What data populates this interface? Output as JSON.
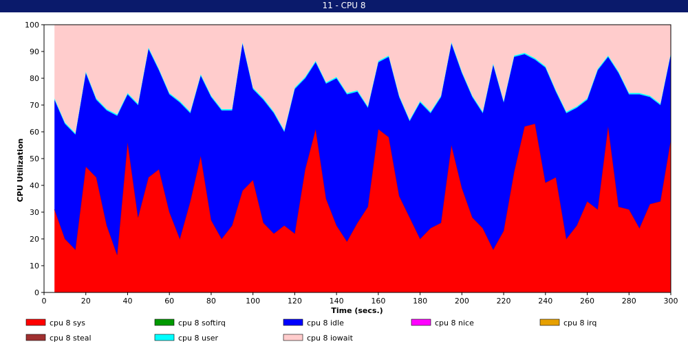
{
  "window": {
    "title": "11 - CPU 8"
  },
  "chart_data": {
    "type": "area",
    "stacked": true,
    "xlabel": "Time (secs.)",
    "ylabel": "CPU Utilization",
    "xlim": [
      0,
      300
    ],
    "ylim": [
      0,
      100
    ],
    "x_ticks": [
      0,
      20,
      40,
      60,
      80,
      100,
      120,
      140,
      160,
      180,
      200,
      220,
      240,
      260,
      280,
      300
    ],
    "y_ticks": [
      0,
      10,
      20,
      30,
      40,
      50,
      60,
      70,
      80,
      90,
      100
    ],
    "grid": false,
    "legend_position": "bottom",
    "x": [
      5,
      10,
      15,
      20,
      25,
      30,
      35,
      40,
      45,
      50,
      55,
      60,
      65,
      70,
      75,
      80,
      85,
      90,
      95,
      100,
      105,
      110,
      115,
      120,
      125,
      130,
      135,
      140,
      145,
      150,
      155,
      160,
      165,
      170,
      175,
      180,
      185,
      190,
      195,
      200,
      205,
      210,
      215,
      220,
      225,
      230,
      235,
      240,
      245,
      250,
      255,
      260,
      265,
      270,
      275,
      280,
      285,
      290,
      295,
      300
    ],
    "series": [
      {
        "name": "cpu 8 sys",
        "color": "#ff0000",
        "values": [
          31,
          20,
          16,
          47,
          43,
          25,
          14,
          56,
          28,
          43,
          46,
          30,
          20,
          34,
          51,
          27,
          20,
          25,
          38,
          42,
          26,
          22,
          25,
          22,
          46,
          61,
          35,
          25,
          19,
          26,
          32,
          61,
          58,
          36,
          28,
          20,
          24,
          26,
          55,
          39,
          28,
          24,
          16,
          23,
          45,
          62,
          63,
          41,
          43,
          20,
          25,
          34,
          31,
          62,
          32,
          31,
          24,
          33,
          34,
          57
        ]
      },
      {
        "name": "cpu 8 softirq",
        "color": "#009900",
        "values": [
          0,
          0,
          0,
          0,
          0,
          0,
          0,
          0,
          0,
          0,
          0,
          0,
          0,
          0,
          0,
          0,
          0,
          0,
          0,
          0,
          0,
          0,
          0,
          0,
          0,
          0,
          0,
          0,
          0,
          0,
          0,
          0,
          0,
          0,
          0,
          0,
          0,
          0,
          0,
          0,
          0,
          0,
          0,
          0,
          0,
          0,
          0,
          0,
          0,
          0,
          0,
          0,
          0,
          0,
          0,
          0,
          0,
          0,
          0,
          0
        ]
      },
      {
        "name": "cpu 8 idle",
        "color": "#0000ff",
        "values": [
          41,
          43,
          43,
          35,
          29,
          43,
          52,
          18,
          42,
          48,
          37,
          44,
          51,
          33,
          30,
          46,
          48,
          43,
          55,
          34,
          46,
          45,
          35,
          54,
          34,
          25,
          43,
          55,
          55,
          49,
          37,
          25,
          30,
          37,
          36,
          51,
          43,
          47,
          38,
          43,
          45,
          43,
          69,
          48,
          43,
          27,
          24,
          43,
          32,
          47,
          44,
          38,
          52,
          26,
          50,
          43,
          50,
          40,
          36,
          32
        ]
      },
      {
        "name": "cpu 8 nice",
        "color": "#ff00ff",
        "values": [
          0,
          0,
          0,
          0,
          0,
          0,
          0,
          0,
          0,
          0,
          0,
          0,
          0,
          0,
          0,
          0,
          0,
          0,
          0,
          0,
          0,
          0,
          0,
          0,
          0,
          0,
          0,
          0,
          0,
          0,
          0,
          0,
          0,
          0,
          0,
          0,
          0,
          0,
          0,
          0,
          0,
          0,
          0,
          0,
          0,
          0,
          0,
          0,
          0,
          0,
          0,
          0,
          0,
          0,
          0,
          0,
          0,
          0,
          0,
          0
        ]
      },
      {
        "name": "cpu 8 irq",
        "color": "#e6a000",
        "values": [
          0,
          0,
          0,
          0,
          0,
          0,
          0,
          0,
          0,
          0,
          0,
          0,
          0,
          0,
          0,
          0,
          0,
          0,
          0,
          0,
          0,
          0,
          0,
          0,
          0,
          0,
          0,
          0,
          0,
          0,
          0,
          0,
          0,
          0,
          0,
          0,
          0,
          0,
          0,
          0,
          0,
          0,
          0,
          0,
          0,
          0,
          0,
          0,
          0,
          0,
          0,
          0,
          0,
          0,
          0,
          0,
          0,
          0,
          0,
          0
        ]
      },
      {
        "name": "cpu 8 steal",
        "color": "#a03030",
        "values": [
          0,
          0,
          0,
          0,
          0,
          0,
          0,
          0,
          0,
          0,
          0,
          0,
          0,
          0,
          0,
          0,
          0,
          0,
          0,
          0,
          0,
          0,
          0,
          0,
          0,
          0,
          0,
          0,
          0,
          0,
          0,
          0,
          0,
          0,
          0,
          0,
          0,
          0,
          0,
          0,
          0,
          0,
          0,
          0,
          0,
          0,
          0,
          0,
          0,
          0,
          0,
          0,
          0,
          0,
          0,
          0,
          0,
          0,
          0,
          0
        ]
      },
      {
        "name": "cpu 8 user",
        "color": "#00ffff",
        "values": [
          0.5,
          0.5,
          0.5,
          0.5,
          0.5,
          0.5,
          0.5,
          0.5,
          0.5,
          0.5,
          0.5,
          0.5,
          0.5,
          0.5,
          0.5,
          0.5,
          0.5,
          0.5,
          0.5,
          0.5,
          0.5,
          0.5,
          0.5,
          0.5,
          0.5,
          0.5,
          0.5,
          0.5,
          0.5,
          0.5,
          0.5,
          0.5,
          0.5,
          0.5,
          0.5,
          0.5,
          0.5,
          0.5,
          0.5,
          0.5,
          0.5,
          0.5,
          0.5,
          0.5,
          0.5,
          0.5,
          0.5,
          0.5,
          0.5,
          0.5,
          0.5,
          0.5,
          0.5,
          0.5,
          0.5,
          0.5,
          0.5,
          0.5,
          0.5,
          0.5
        ]
      },
      {
        "name": "cpu 8 iowait",
        "color": "#ffcccc",
        "values": [
          27.5,
          36.5,
          40.5,
          17.5,
          27.5,
          31.5,
          33.5,
          25.5,
          29.5,
          8.5,
          16.5,
          25.5,
          28.5,
          32.5,
          18.5,
          26.5,
          31.5,
          31.5,
          6.5,
          23.5,
          27.5,
          32.5,
          39.5,
          23.5,
          19.5,
          13.5,
          21.5,
          19.5,
          25.5,
          24.5,
          30.5,
          13.5,
          11.5,
          26.5,
          35.5,
          28.5,
          32.5,
          26.5,
          6.5,
          17.5,
          26.5,
          32.5,
          14.5,
          28.5,
          11.5,
          10.5,
          12.5,
          15.5,
          24.5,
          32.5,
          30.5,
          27.5,
          16.5,
          11.5,
          17.5,
          25.5,
          25.5,
          26.5,
          29.5,
          10.5
        ]
      }
    ]
  }
}
